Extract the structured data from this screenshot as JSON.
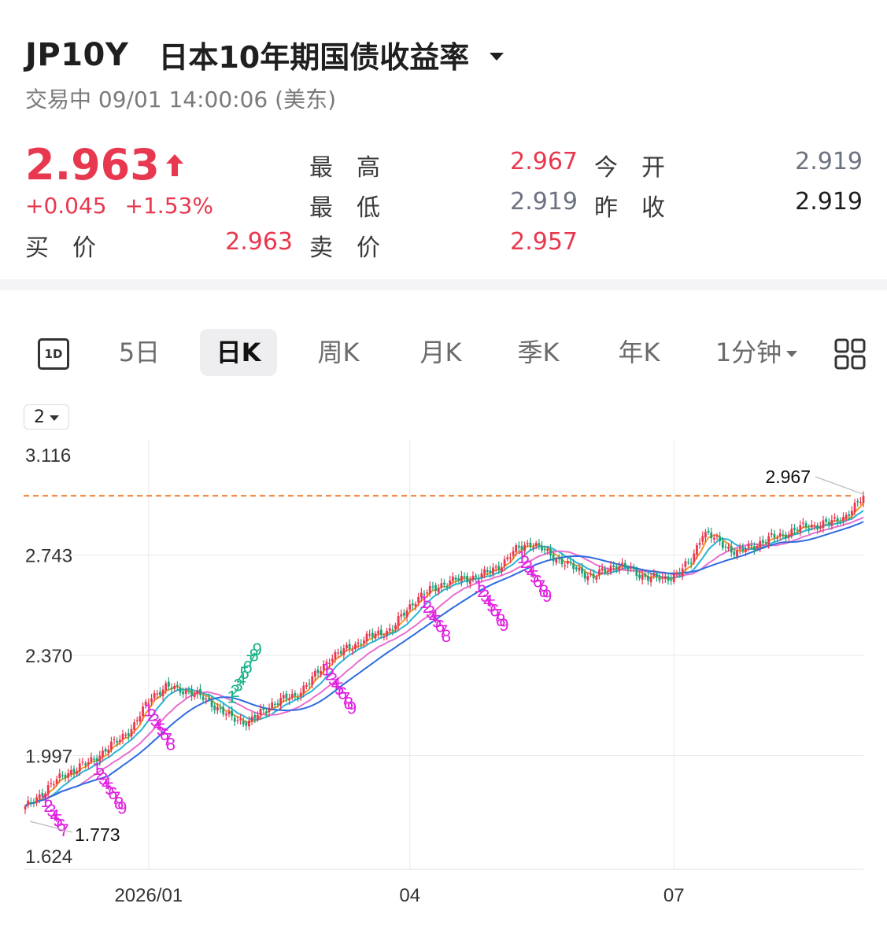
{
  "header": {
    "symbol": "JP10Y",
    "name": "日本10年期国债收益率",
    "status": "交易中 09/01 14:00:06 (美东)",
    "price": "2.963",
    "change": "+0.045",
    "change_pct": "+1.53%"
  },
  "quote": {
    "high_label": "最高",
    "high": "2.967",
    "open_label": "今开",
    "open": "2.919",
    "low_label": "最低",
    "low": "2.919",
    "prev_close_label": "昨收",
    "prev_close": "2.919",
    "bid_label": "买价",
    "bid": "2.963",
    "ask_label": "卖价",
    "ask": "2.957"
  },
  "tabs": {
    "one_day": "1D",
    "items": [
      "5日",
      "日K",
      "周K",
      "月K",
      "季K",
      "年K"
    ],
    "active": "日K",
    "interval": "1分钟"
  },
  "period_selector": "2",
  "colors": {
    "up": "#e8384f",
    "down": "#1aa37a",
    "ma_fast": "#f5962a",
    "ma_mid": "#2bb3d6",
    "ma_slow": "#e86fcf",
    "ma_long": "#2e6be0",
    "ref_line": "#f07a28"
  },
  "chart_data": {
    "type": "candlestick",
    "y_ticks": [
      "3.116",
      "2.743",
      "2.370",
      "1.997",
      "1.624"
    ],
    "ylim": [
      1.624,
      3.116
    ],
    "x_ticks": [
      {
        "label": "2026/01",
        "x": 43
      },
      {
        "label": "04",
        "x": 134
      },
      {
        "label": "07",
        "x": 226
      }
    ],
    "max_label": "2.967",
    "min_label": "1.773",
    "reference_line": 2.963,
    "anchors": [
      [
        0,
        1.8
      ],
      [
        6,
        1.86
      ],
      [
        14,
        1.93
      ],
      [
        22,
        1.97
      ],
      [
        32,
        2.05
      ],
      [
        38,
        2.11
      ],
      [
        44,
        2.22
      ],
      [
        49,
        2.25
      ],
      [
        56,
        2.24
      ],
      [
        64,
        2.2
      ],
      [
        71,
        2.14
      ],
      [
        78,
        2.12
      ],
      [
        86,
        2.19
      ],
      [
        94,
        2.22
      ],
      [
        100,
        2.28
      ],
      [
        106,
        2.36
      ],
      [
        110,
        2.38
      ],
      [
        118,
        2.43
      ],
      [
        128,
        2.47
      ],
      [
        136,
        2.58
      ],
      [
        146,
        2.64
      ],
      [
        160,
        2.67
      ],
      [
        166,
        2.71
      ],
      [
        172,
        2.77
      ],
      [
        176,
        2.79
      ],
      [
        182,
        2.75
      ],
      [
        190,
        2.7
      ],
      [
        198,
        2.66
      ],
      [
        206,
        2.71
      ],
      [
        214,
        2.67
      ],
      [
        222,
        2.65
      ],
      [
        228,
        2.68
      ],
      [
        232,
        2.72
      ],
      [
        236,
        2.83
      ],
      [
        242,
        2.79
      ],
      [
        248,
        2.75
      ],
      [
        256,
        2.79
      ],
      [
        264,
        2.82
      ],
      [
        272,
        2.85
      ],
      [
        280,
        2.86
      ],
      [
        286,
        2.89
      ],
      [
        290,
        2.93
      ],
      [
        292,
        2.963
      ]
    ],
    "moving_averages": [
      {
        "period": 5
      },
      {
        "period": 10
      },
      {
        "period": 20
      },
      {
        "period": 30
      }
    ],
    "td_labels": [
      {
        "x": 7,
        "text": "1234567",
        "color": "magenta",
        "above": true
      },
      {
        "x": 25,
        "text": "123456789",
        "color": "magenta",
        "above": true
      },
      {
        "x": 43,
        "text": "12345678",
        "color": "magenta",
        "above": true
      },
      {
        "x": 72,
        "text": "123456789",
        "color": "green",
        "above": false
      },
      {
        "x": 105,
        "text": "123456789",
        "color": "magenta",
        "above": true
      },
      {
        "x": 139,
        "text": "12345678",
        "color": "magenta",
        "above": true
      },
      {
        "x": 158,
        "text": "123456789",
        "color": "magenta",
        "above": true
      },
      {
        "x": 173,
        "text": "123456789",
        "color": "magenta",
        "above": true
      }
    ]
  }
}
